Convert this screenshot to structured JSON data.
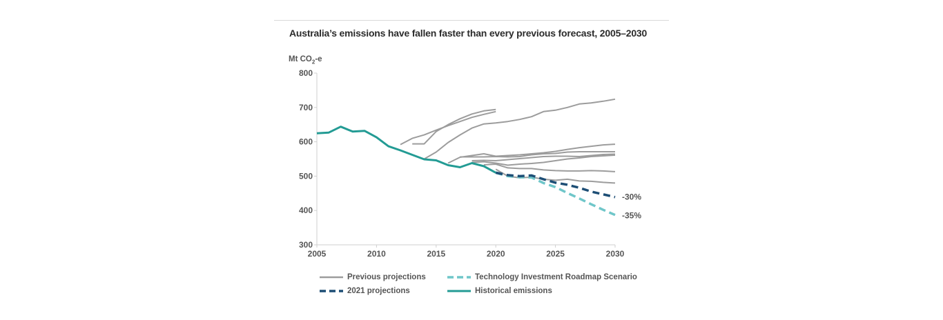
{
  "chart_data": {
    "type": "line",
    "title": "Australia’s emissions have fallen faster than every previous forecast, 2005–2030",
    "ylabel_prefix": "Mt CO",
    "ylabel_sub": "2",
    "ylabel_suffix": "-e",
    "xlim": [
      2005,
      2030
    ],
    "ylim": [
      300,
      800
    ],
    "x_ticks": [
      2005,
      2010,
      2015,
      2020,
      2025,
      2030
    ],
    "y_ticks": [
      300,
      400,
      500,
      600,
      700,
      800
    ],
    "grid": false,
    "legend_position": "bottom",
    "annotations": [
      {
        "text": "-30%",
        "x": 2030,
        "y": 438
      },
      {
        "text": "-35%",
        "x": 2030,
        "y": 383
      }
    ],
    "historical": {
      "name": "Historical emissions",
      "color": "#239b94",
      "points": [
        [
          2005,
          625
        ],
        [
          2006,
          627
        ],
        [
          2007,
          644
        ],
        [
          2008,
          630
        ],
        [
          2009,
          632
        ],
        [
          2010,
          613
        ],
        [
          2011,
          587
        ],
        [
          2012,
          575
        ],
        [
          2013,
          562
        ],
        [
          2014,
          549
        ],
        [
          2015,
          546
        ],
        [
          2016,
          532
        ],
        [
          2017,
          526
        ],
        [
          2018,
          538
        ],
        [
          2019,
          529
        ],
        [
          2020,
          510
        ]
      ]
    },
    "projection_2021": {
      "name": "2021 projections",
      "color": "#1d4e75",
      "points": [
        [
          2020,
          510
        ],
        [
          2021,
          503
        ],
        [
          2022,
          500
        ],
        [
          2023,
          502
        ],
        [
          2024,
          491
        ],
        [
          2025,
          481
        ],
        [
          2026,
          475
        ],
        [
          2027,
          466
        ],
        [
          2028,
          455
        ],
        [
          2029,
          447
        ],
        [
          2030,
          439
        ]
      ]
    },
    "tir_scenario": {
      "name": "Technology Investment Roadmap Scenario",
      "color": "#6fc6c9",
      "points": [
        [
          2020,
          510
        ],
        [
          2021,
          500
        ],
        [
          2022,
          497
        ],
        [
          2023,
          496
        ],
        [
          2024,
          480
        ],
        [
          2025,
          468
        ],
        [
          2026,
          451
        ],
        [
          2027,
          435
        ],
        [
          2028,
          418
        ],
        [
          2029,
          402
        ],
        [
          2030,
          387
        ]
      ]
    },
    "previous_projections": {
      "name": "Previous projections",
      "color": "#9c9c9c",
      "lines": [
        [
          [
            2012,
            592
          ],
          [
            2013,
            610
          ],
          [
            2014,
            620
          ],
          [
            2015,
            634
          ],
          [
            2016,
            647
          ],
          [
            2017,
            659
          ],
          [
            2018,
            671
          ],
          [
            2019,
            680
          ],
          [
            2020,
            688
          ]
        ],
        [
          [
            2013,
            594
          ],
          [
            2014,
            594
          ],
          [
            2015,
            630
          ],
          [
            2016,
            650
          ],
          [
            2017,
            667
          ],
          [
            2018,
            681
          ],
          [
            2019,
            690
          ],
          [
            2020,
            694
          ]
        ],
        [
          [
            2014,
            550
          ],
          [
            2015,
            570
          ],
          [
            2016,
            598
          ],
          [
            2017,
            620
          ],
          [
            2018,
            640
          ],
          [
            2019,
            652
          ],
          [
            2020,
            655
          ],
          [
            2021,
            659
          ],
          [
            2022,
            665
          ],
          [
            2023,
            673
          ],
          [
            2024,
            688
          ],
          [
            2025,
            692
          ],
          [
            2026,
            700
          ],
          [
            2027,
            710
          ],
          [
            2028,
            713
          ],
          [
            2029,
            718
          ],
          [
            2030,
            724
          ]
        ],
        [
          [
            2016,
            538
          ],
          [
            2017,
            555
          ],
          [
            2018,
            560
          ],
          [
            2019,
            565
          ],
          [
            2020,
            558
          ],
          [
            2021,
            560
          ],
          [
            2022,
            562
          ],
          [
            2023,
            565
          ],
          [
            2024,
            568
          ],
          [
            2025,
            572
          ],
          [
            2026,
            578
          ],
          [
            2027,
            583
          ],
          [
            2028,
            587
          ],
          [
            2029,
            591
          ],
          [
            2030,
            593
          ]
        ],
        [
          [
            2017,
            556
          ],
          [
            2018,
            556
          ],
          [
            2019,
            556
          ],
          [
            2020,
            557
          ],
          [
            2021,
            556
          ],
          [
            2022,
            557
          ],
          [
            2023,
            562
          ],
          [
            2024,
            565
          ],
          [
            2025,
            566
          ],
          [
            2026,
            570
          ],
          [
            2027,
            571
          ],
          [
            2028,
            571
          ],
          [
            2029,
            571
          ],
          [
            2030,
            571
          ]
        ],
        [
          [
            2018,
            545
          ],
          [
            2019,
            546
          ],
          [
            2020,
            545
          ],
          [
            2021,
            548
          ],
          [
            2022,
            551
          ],
          [
            2023,
            554
          ],
          [
            2024,
            557
          ],
          [
            2025,
            558
          ],
          [
            2026,
            558
          ],
          [
            2027,
            557
          ],
          [
            2028,
            560
          ],
          [
            2029,
            563
          ],
          [
            2030,
            564
          ]
        ],
        [
          [
            2018,
            540
          ],
          [
            2019,
            542
          ],
          [
            2020,
            538
          ],
          [
            2021,
            532
          ],
          [
            2022,
            535
          ],
          [
            2023,
            537
          ],
          [
            2024,
            540
          ],
          [
            2025,
            545
          ],
          [
            2026,
            550
          ],
          [
            2027,
            553
          ],
          [
            2028,
            557
          ],
          [
            2029,
            559
          ],
          [
            2030,
            561
          ]
        ],
        [
          [
            2019,
            533
          ],
          [
            2020,
            535
          ],
          [
            2021,
            524
          ],
          [
            2022,
            522
          ],
          [
            2023,
            522
          ],
          [
            2024,
            518
          ],
          [
            2025,
            516
          ],
          [
            2026,
            515
          ],
          [
            2027,
            515
          ],
          [
            2028,
            516
          ],
          [
            2029,
            515
          ],
          [
            2030,
            513
          ]
        ],
        [
          [
            2020,
            520
          ],
          [
            2021,
            500
          ],
          [
            2022,
            495
          ],
          [
            2023,
            497
          ],
          [
            2024,
            491
          ],
          [
            2025,
            488
          ],
          [
            2026,
            491
          ],
          [
            2027,
            486
          ],
          [
            2028,
            485
          ],
          [
            2029,
            482
          ],
          [
            2030,
            480
          ]
        ]
      ]
    }
  },
  "legend": {
    "previous": "Previous projections",
    "tir": "Technology Investment Roadmap Scenario",
    "p2021": "2021 projections",
    "historical": "Historical emissions"
  }
}
